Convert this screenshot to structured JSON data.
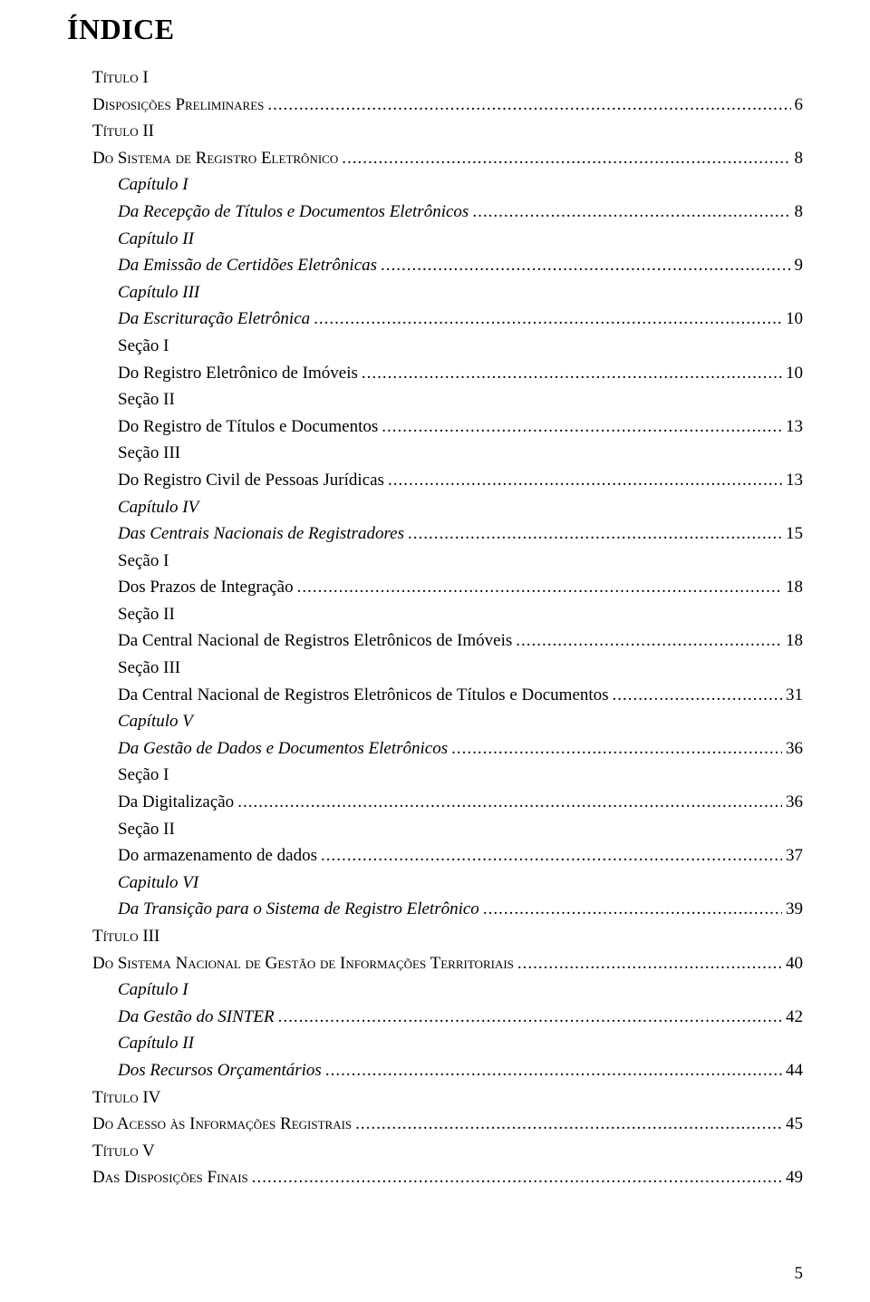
{
  "title": "ÍNDICE",
  "page_number": "5",
  "entries": [
    {
      "indent": 1,
      "style": "smallcaps",
      "label": "Título I",
      "label_display": "Título I",
      "page": ""
    },
    {
      "indent": 1,
      "style": "smallcaps",
      "label": "Disposições Preliminares",
      "page": "6",
      "dots": true
    },
    {
      "indent": 1,
      "style": "smallcaps",
      "label": "Título II",
      "page": ""
    },
    {
      "indent": 1,
      "style": "smallcaps",
      "label": "Do Sistema de Registro Eletrônico",
      "page": "8",
      "dots": true
    },
    {
      "indent": 2,
      "style": "italic",
      "label": "Capítulo I",
      "page": ""
    },
    {
      "indent": 2,
      "style": "italic",
      "label": "Da Recepção de Títulos e Documentos Eletrônicos",
      "page": "8",
      "dots": true
    },
    {
      "indent": 2,
      "style": "italic",
      "label": "Capítulo II",
      "page": ""
    },
    {
      "indent": 2,
      "style": "italic",
      "label": "Da Emissão de Certidões Eletrônicas",
      "page": "9",
      "dots": true
    },
    {
      "indent": 2,
      "style": "italic",
      "label": "Capítulo III",
      "page": ""
    },
    {
      "indent": 2,
      "style": "italic",
      "label": "Da Escrituração Eletrônica",
      "page": "10",
      "dots": true
    },
    {
      "indent": 2,
      "style": "",
      "label": "Seção I",
      "page": "",
      "indent_override": 2,
      "extra_indent": true
    },
    {
      "indent": 2,
      "style": "",
      "label": "Do Registro Eletrônico de Imóveis",
      "page": "10",
      "dots": true,
      "extra_indent": true
    },
    {
      "indent": 2,
      "style": "",
      "label": "Seção II",
      "page": "",
      "extra_indent": true
    },
    {
      "indent": 2,
      "style": "",
      "label": "Do Registro de Títulos e Documentos",
      "page": "13",
      "dots": true,
      "extra_indent": true
    },
    {
      "indent": 2,
      "style": "",
      "label": "Seção III",
      "page": "",
      "extra_indent": true
    },
    {
      "indent": 2,
      "style": "",
      "label": "Do Registro Civil de Pessoas Jurídicas",
      "page": "13",
      "dots": true,
      "extra_indent": true
    },
    {
      "indent": 2,
      "style": "italic",
      "label": "Capítulo IV",
      "page": ""
    },
    {
      "indent": 2,
      "style": "italic",
      "label": "Das Centrais Nacionais de Registradores",
      "page": "15",
      "dots": true
    },
    {
      "indent": 2,
      "style": "",
      "label": "Seção I",
      "page": "",
      "extra_indent": true
    },
    {
      "indent": 2,
      "style": "",
      "label": "Dos Prazos de Integração",
      "page": "18",
      "dots": true,
      "extra_indent": true
    },
    {
      "indent": 2,
      "style": "",
      "label": "Seção II",
      "page": "",
      "extra_indent": true
    },
    {
      "indent": 2,
      "style": "",
      "label": "Da Central Nacional de Registros Eletrônicos de Imóveis",
      "page": "18",
      "dots": true,
      "extra_indent": true
    },
    {
      "indent": 2,
      "style": "",
      "label": "Seção III",
      "page": "",
      "extra_indent": true
    },
    {
      "indent": 2,
      "style": "",
      "label": "Da Central Nacional de Registros Eletrônicos de Títulos e Documentos",
      "page": "31",
      "dots": true,
      "extra_indent": true
    },
    {
      "indent": 2,
      "style": "italic",
      "label": "Capítulo V",
      "page": ""
    },
    {
      "indent": 2,
      "style": "italic",
      "label": "Da Gestão de Dados e Documentos Eletrônicos",
      "page": "36",
      "dots": true
    },
    {
      "indent": 2,
      "style": "",
      "label": "Seção I",
      "page": "",
      "extra_indent": true
    },
    {
      "indent": 2,
      "style": "",
      "label": "Da Digitalização",
      "page": "36",
      "dots": true,
      "extra_indent": true
    },
    {
      "indent": 2,
      "style": "",
      "label": "Seção II",
      "page": "",
      "extra_indent": true
    },
    {
      "indent": 2,
      "style": "",
      "label": "Do armazenamento de dados",
      "page": "37",
      "dots": true,
      "extra_indent": true
    },
    {
      "indent": 2,
      "style": "italic",
      "label": "Capitulo VI",
      "page": ""
    },
    {
      "indent": 2,
      "style": "italic",
      "label": "Da Transição para o Sistema de Registro Eletrônico",
      "page": "39",
      "dots": true
    },
    {
      "indent": 1,
      "style": "smallcaps",
      "label": "Título III",
      "page": ""
    },
    {
      "indent": 1,
      "style": "smallcaps",
      "label": "Do Sistema Nacional de Gestão de Informações Territoriais",
      "page": "40",
      "dots": true
    },
    {
      "indent": 2,
      "style": "italic",
      "label": "Capítulo I",
      "page": ""
    },
    {
      "indent": 2,
      "style": "italic",
      "label": "Da Gestão do SINTER",
      "page": "42",
      "dots": true
    },
    {
      "indent": 2,
      "style": "italic",
      "label": "Capítulo II",
      "page": ""
    },
    {
      "indent": 2,
      "style": "italic",
      "label": "Dos Recursos Orçamentários",
      "page": "44",
      "dots": true
    },
    {
      "indent": 1,
      "style": "smallcaps",
      "label": "Título IV",
      "page": ""
    },
    {
      "indent": 1,
      "style": "smallcaps",
      "label": "Do Acesso às Informações Registrais",
      "page": "45",
      "dots": true
    },
    {
      "indent": 1,
      "style": "smallcaps",
      "label": "Título V",
      "page": ""
    },
    {
      "indent": 1,
      "style": "smallcaps",
      "label": "Das Disposições Finais",
      "page": "49",
      "dots": true
    }
  ]
}
